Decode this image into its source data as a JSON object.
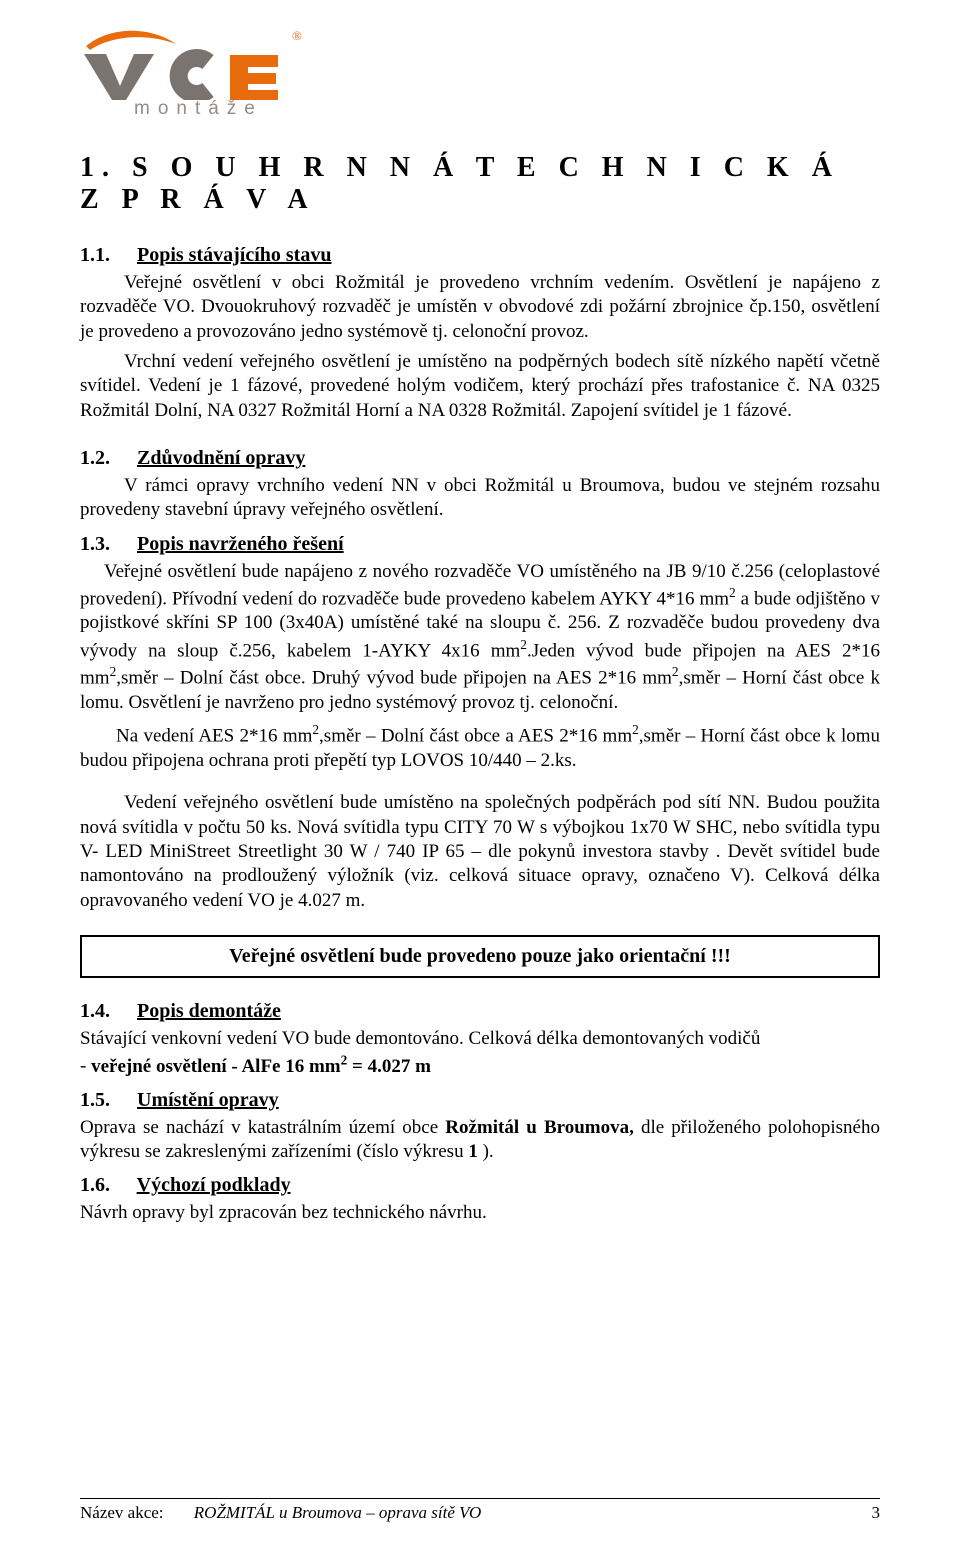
{
  "logo": {
    "brand_letters": "VCE",
    "subtitle": "montáže",
    "registered": "®",
    "colors": {
      "orange": "#e96c0c",
      "brown_gray": "#7a736f",
      "sub_gray": "#948c89"
    }
  },
  "title": "1. S O U H R N N Á   T E C H N I C K Á   Z P R Á V A",
  "sections": {
    "s11": {
      "num": "1.1.",
      "title": "Popis stávajícího stavu"
    },
    "s12": {
      "num": "1.2.",
      "title": "Zdůvodnění opravy"
    },
    "s13": {
      "num": "1.3.",
      "title": "Popis navrženého řešení"
    },
    "s14": {
      "num": "1.4.",
      "title": "Popis demontáže"
    },
    "s15": {
      "num": "1.5.",
      "title": "Umístění opravy"
    },
    "s16": {
      "num": "1.6.",
      "title": "Výchozí podklady"
    }
  },
  "body": {
    "p11a": "Veřejné osvětlení v obci Rožmitál  je provedeno vrchním vedením. Osvětlení je napájeno z rozvaděče VO. Dvouokruhový rozvaděč je umístěn  v obvodové zdi požární zbrojnice čp.150, osvětlení je provedeno a provozováno jedno systémově tj. celonoční provoz.",
    "p11b": "Vrchní vedení veřejného osvětlení je umístěno na podpěrných bodech sítě nízkého napětí včetně svítidel. Vedení je 1 fázové, provedené holým vodičem, který prochází přes trafostanice č. NA 0325 Rožmitál Dolní, NA 0327 Rožmitál Horní a NA 0328 Rožmitál. Zapojení svítidel je 1 fázové.",
    "p12": "V rámci opravy vrchního vedení NN v obci Rožmitál u Broumova, budou ve stejném rozsahu provedeny stavební úpravy veřejného osvětlení.",
    "p13a_html": "Veřejné osvětlení bude napájeno z nového  rozvaděče VO umístěného na JB 9/10 č.256 (celoplastové provedení). Přívodní vedení do rozvaděče bude provedeno kabelem AYKY 4*16 mm<sup>2</sup> a bude odjištěno v pojistkové skříni SP 100 (3x40A) umístěné také na sloupu č. 256. Z rozvaděče budou provedeny dva vývody  na sloup č.256, kabelem 1-AYKY 4x16 mm<sup>2</sup>.Jeden vývod bude připojen na AES 2*16 mm<sup>2</sup>,směr – Dolní část obce. Druhý vývod bude připojen na AES 2*16 mm<sup>2</sup>,směr – Horní část obce k lomu. Osvětlení je navrženo pro jedno systémový provoz tj. celonoční.",
    "p13b_html": "Na vedení  AES 2*16 mm<sup>2</sup>,směr – Dolní část obce a AES 2*16 mm<sup>2</sup>,směr – Horní část obce k lomu budou připojena ochrana proti přepětí typ LOVOS 10/440 – 2.ks.",
    "p13c": "Vedení veřejného osvětlení bude umístěno na společných podpěrách pod  sítí NN. Budou použita nová svítidla v počtu 50 ks.  Nová svítidla typu CITY 70 W s výbojkou 1x70 W SHC, nebo svítidla typu V- LED MiniStreet Streetlight 30 W / 740 IP 65 – dle pokynů investora stavby . Devět svítidel bude namontováno na prodloužený výložník (viz. celková situace opravy, označeno V).  Celková délka opravovaného vedení VO je 4.027 m.",
    "callout": "Veřejné osvětlení bude provedeno pouze jako orientační !!!",
    "p14_html": "Stávající venkovní vedení VO bude demontováno. Celková délka demontovaných vodičů<br>- <b>veřejné osvětlení - AlFe 16 mm<sup>2</sup>  = 4.027 m</b>",
    "p15": "Oprava se nachází v katastrálním území obce <b>Rožmitál u Broumova,</b> dle přiloženého polohopisného výkresu se zakreslenými  zařízeními (číslo výkresu <b>1</b> ).",
    "p16": "Návrh opravy byl zpracován bez technického návrhu."
  },
  "footer": {
    "label": "Název akce:",
    "doc_title": "ROŽMITÁL u Broumova – oprava sítě VO",
    "page_number": "3"
  }
}
